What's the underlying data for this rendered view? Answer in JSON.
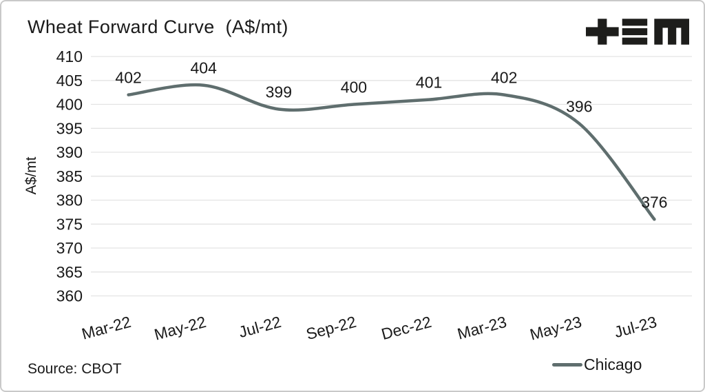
{
  "header": {
    "title": "Wheat Forward Curve  (A$/mt)",
    "logo_name": "tem-logo"
  },
  "footer": {
    "source": "Source: CBOT",
    "legend": {
      "label": "Chicago",
      "swatch_color": "#5F6E6E"
    }
  },
  "colors": {
    "line": "#5F6E6E",
    "gridline": "#e3e3e3",
    "text": "#1a1a1a",
    "logo": "#1d1d1b",
    "card_border": "#c9c9c9",
    "background": "#ffffff"
  },
  "chart_data": {
    "type": "line",
    "title": "Wheat Forward Curve  (A$/mt)",
    "xlabel": "",
    "ylabel": "A$/mt",
    "categories": [
      "Mar-22",
      "May-22",
      "Jul-22",
      "Sep-22",
      "Dec-22",
      "Mar-23",
      "May-23",
      "Jul-23"
    ],
    "series": [
      {
        "name": "Chicago",
        "color": "#5F6E6E",
        "values": [
          402,
          404,
          399,
          400,
          401,
          402,
          396,
          376
        ]
      }
    ],
    "ylim": [
      360,
      410
    ],
    "ytick_step": 5,
    "grid": "horizontal",
    "data_labels": true,
    "x_tick_rotation": -15,
    "legend_position": "bottom-right",
    "source": "Source: CBOT"
  }
}
